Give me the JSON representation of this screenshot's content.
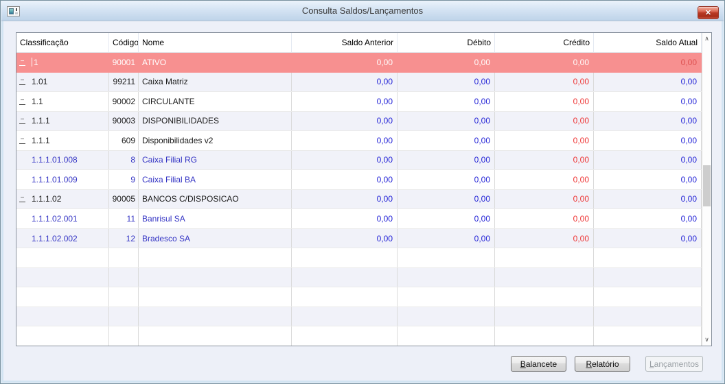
{
  "window": {
    "title": "Consulta Saldos/Lançamentos"
  },
  "icons": {
    "close": "✕",
    "scroll_up": "∧",
    "scroll_down": "∨",
    "tree_collapse": "−"
  },
  "colors": {
    "selected_bg": "#f79090",
    "white": "#ffffff",
    "blue": "#2121d6",
    "red": "#ee3333",
    "selected_red": "#dd4f4f",
    "group_text": "#1a1a1a",
    "child_text": "#3434c4"
  },
  "table": {
    "columns": [
      {
        "label": "Classificação",
        "align": "left"
      },
      {
        "label": "Código",
        "align": "left"
      },
      {
        "label": "Nome",
        "align": "left"
      },
      {
        "label": "Saldo Anterior",
        "align": "right"
      },
      {
        "label": "Débito",
        "align": "right"
      },
      {
        "label": "Crédito",
        "align": "right"
      },
      {
        "label": "Saldo Atual",
        "align": "right"
      }
    ],
    "value_colors": {
      "normal": [
        "blue",
        "blue",
        "red",
        "blue"
      ],
      "selected": [
        "white",
        "white",
        "white",
        "selected_red"
      ]
    },
    "rows": [
      {
        "classificacao": "1",
        "codigo": "90001",
        "nome": "ATIVO",
        "saldo_anterior": "0,00",
        "debito": "0,00",
        "credito": "0,00",
        "saldo_atual": "0,00",
        "group": true,
        "selected": true
      },
      {
        "classificacao": "1.01",
        "codigo": "99211",
        "nome": "Caixa Matriz",
        "saldo_anterior": "0,00",
        "debito": "0,00",
        "credito": "0,00",
        "saldo_atual": "0,00",
        "group": true,
        "selected": false
      },
      {
        "classificacao": "1.1",
        "codigo": "90002",
        "nome": "CIRCULANTE",
        "saldo_anterior": "0,00",
        "debito": "0,00",
        "credito": "0,00",
        "saldo_atual": "0,00",
        "group": true,
        "selected": false
      },
      {
        "classificacao": "1.1.1",
        "codigo": "90003",
        "nome": "DISPONIBILIDADES",
        "saldo_anterior": "0,00",
        "debito": "0,00",
        "credito": "0,00",
        "saldo_atual": "0,00",
        "group": true,
        "selected": false
      },
      {
        "classificacao": "1.1.1",
        "codigo": "609",
        "nome": "Disponibilidades v2",
        "saldo_anterior": "0,00",
        "debito": "0,00",
        "credito": "0,00",
        "saldo_atual": "0,00",
        "group": true,
        "selected": false
      },
      {
        "classificacao": "1.1.1.01.008",
        "codigo": "8",
        "nome": "Caixa Filial RG",
        "saldo_anterior": "0,00",
        "debito": "0,00",
        "credito": "0,00",
        "saldo_atual": "0,00",
        "group": false,
        "selected": false
      },
      {
        "classificacao": "1.1.1.01.009",
        "codigo": "9",
        "nome": "Caixa Filial BA",
        "saldo_anterior": "0,00",
        "debito": "0,00",
        "credito": "0,00",
        "saldo_atual": "0,00",
        "group": false,
        "selected": false
      },
      {
        "classificacao": "1.1.1.02",
        "codigo": "90005",
        "nome": "BANCOS C/DISPOSICAO",
        "saldo_anterior": "0,00",
        "debito": "0,00",
        "credito": "0,00",
        "saldo_atual": "0,00",
        "group": true,
        "selected": false
      },
      {
        "classificacao": "1.1.1.02.001",
        "codigo": "11",
        "nome": "Banrisul SA",
        "saldo_anterior": "0,00",
        "debito": "0,00",
        "credito": "0,00",
        "saldo_atual": "0,00",
        "group": false,
        "selected": false
      },
      {
        "classificacao": "1.1.1.02.002",
        "codigo": "12",
        "nome": "Bradesco SA",
        "saldo_anterior": "0,00",
        "debito": "0,00",
        "credito": "0,00",
        "saldo_atual": "0,00",
        "group": false,
        "selected": false
      }
    ],
    "empty_row_count": 5
  },
  "buttons": [
    {
      "label": "Balancete",
      "enabled": true
    },
    {
      "label": "Relatório",
      "enabled": true
    },
    {
      "label": "Lançamentos",
      "enabled": false
    }
  ]
}
